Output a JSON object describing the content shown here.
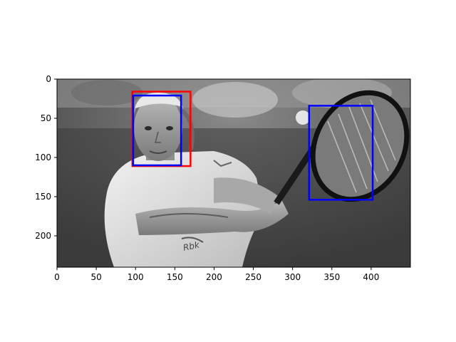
{
  "figure": {
    "image_content": "grayscale photo of a tennis player hitting a two-handed backhand with racket",
    "x_ticks": [
      "0",
      "50",
      "100",
      "150",
      "200",
      "250",
      "300",
      "350",
      "400"
    ],
    "y_ticks": [
      "0",
      "50",
      "100",
      "150",
      "200"
    ],
    "x_range": [
      0,
      450
    ],
    "y_range": [
      0,
      240
    ],
    "boxes": [
      {
        "label": "",
        "color": "#ff0000",
        "x0": 96,
        "y0": 16,
        "x1": 170,
        "y1": 111
      },
      {
        "label": "",
        "color": "#0000ff",
        "x0": 97,
        "y0": 21,
        "x1": 158,
        "y1": 110
      },
      {
        "label": "",
        "color": "#0000ff",
        "x0": 321,
        "y0": 34,
        "x1": 402,
        "y1": 154
      }
    ]
  }
}
